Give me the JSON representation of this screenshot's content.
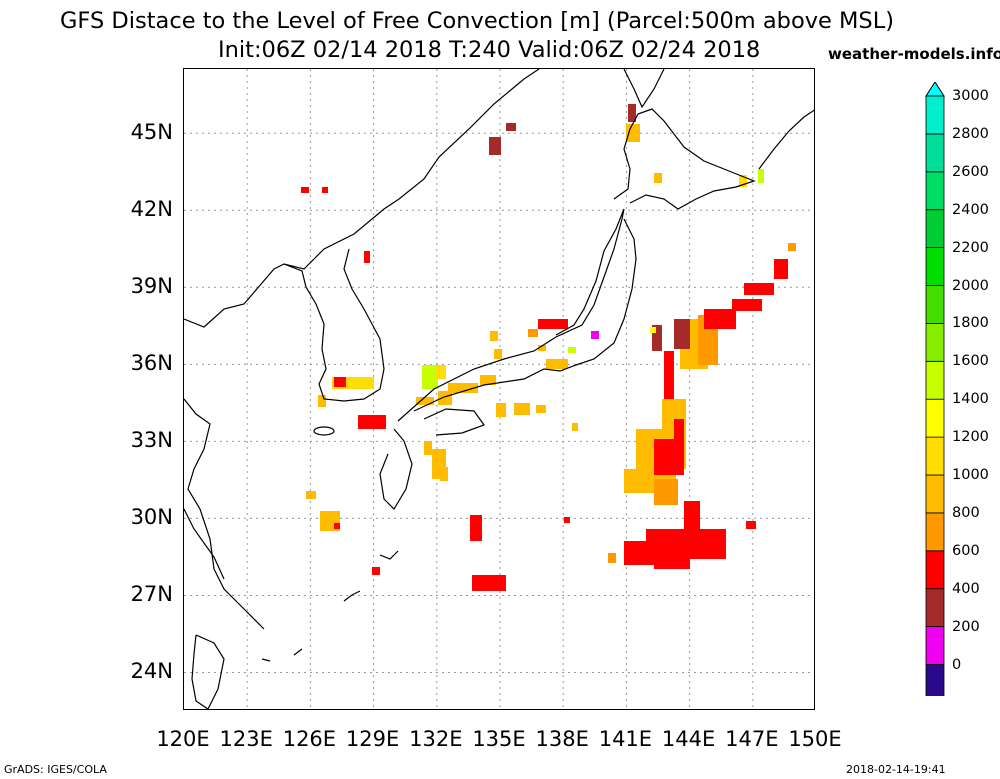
{
  "title": {
    "line1": "GFS Distace to the Level of Free Convection [m] (Parcel:500m above MSL)",
    "line2": "Init:06Z 02/14 2018 T:240 Valid:06Z 02/24 2018"
  },
  "site": "weather-models.info",
  "footer": {
    "left": "GrADS: IGES/COLA",
    "right": "2018-02-14-19:41"
  },
  "map": {
    "lat_labels": [
      "45N",
      "42N",
      "39N",
      "36N",
      "33N",
      "30N",
      "27N",
      "24N"
    ],
    "lon_labels": [
      "120E",
      "123E",
      "126E",
      "129E",
      "132E",
      "135E",
      "138E",
      "141E",
      "144E",
      "147E",
      "150E"
    ],
    "lat_values": [
      45,
      42,
      39,
      36,
      33,
      30,
      27,
      24
    ],
    "lon_values": [
      120,
      123,
      126,
      129,
      132,
      135,
      138,
      141,
      144,
      147,
      150
    ],
    "lon_range": [
      120,
      150
    ],
    "lat_range": [
      22.5,
      47.5
    ]
  },
  "colorbar": {
    "labels": [
      "3000",
      "2800",
      "2600",
      "2400",
      "2200",
      "2000",
      "1800",
      "1600",
      "1400",
      "1200",
      "1000",
      "800",
      "600",
      "400",
      "200",
      "0"
    ],
    "colors": [
      "#2a0a8a",
      "#f000f0",
      "#a52a2a",
      "#ff0000",
      "#ff9900",
      "#ffbb00",
      "#ffdd00",
      "#ffff00",
      "#c8ff00",
      "#88ee00",
      "#44dd00",
      "#00dd00",
      "#00cc33",
      "#00dd66",
      "#00dd99",
      "#00eecc"
    ],
    "top_arrow_color": "#00ffff",
    "bottom_arrow_color": "#330077"
  }
}
